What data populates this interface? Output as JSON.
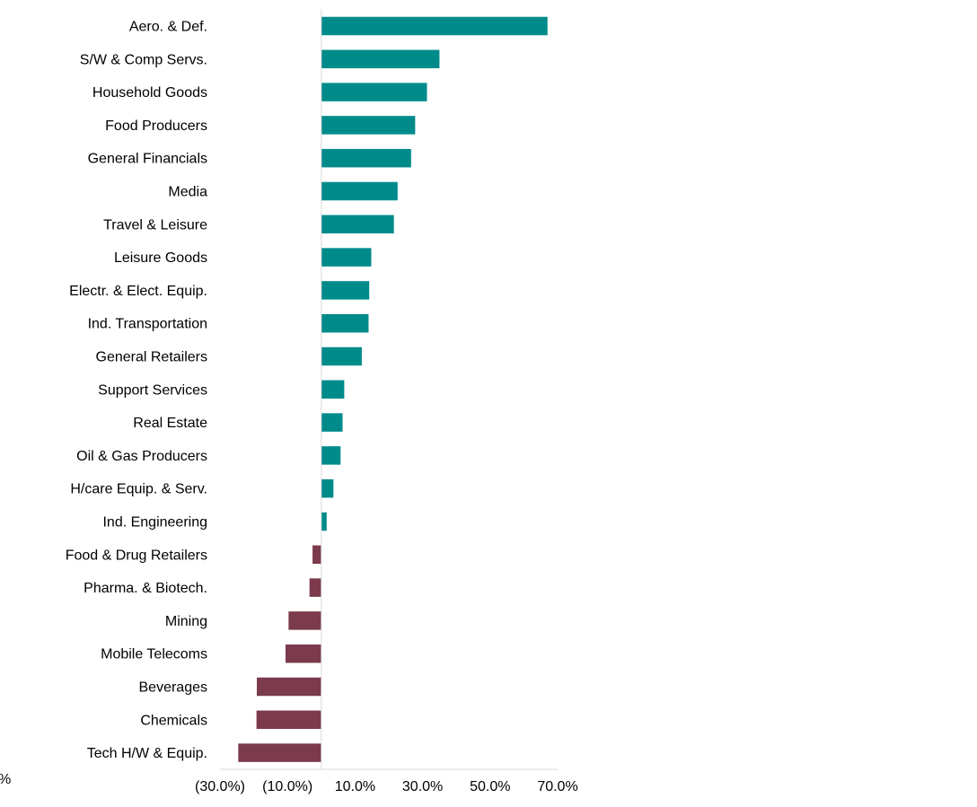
{
  "chart_data": {
    "type": "bar",
    "orientation": "horizontal",
    "title": "",
    "xlabel": "",
    "ylabel": "",
    "categories": [
      "Aero. & Def.",
      "S/W & Comp Servs.",
      "Household Goods",
      "Food Producers",
      "General Financials",
      "Media",
      "Travel & Leisure",
      "Leisure Goods",
      "Electr. & Elect. Equip.",
      "Ind. Transportation",
      "General Retailers",
      "Support Services",
      "Real Estate",
      "Oil & Gas Producers",
      "H/care Equip. & Serv.",
      "Ind. Engineering",
      "Food & Drug Retailers",
      "Pharma. & Biotech.",
      "Mining",
      "Mobile Telecoms",
      "Beverages",
      "Chemicals",
      "Tech H/W & Equip."
    ],
    "values": [
      67.0,
      35.0,
      31.3,
      27.8,
      26.6,
      22.6,
      21.5,
      14.8,
      14.2,
      14.0,
      12.0,
      6.8,
      6.3,
      5.7,
      3.6,
      1.6,
      -2.6,
      -3.5,
      -9.7,
      -10.6,
      -19.1,
      -19.2,
      -24.6
    ],
    "xlim": [
      -30,
      70
    ],
    "x_ticks": [
      "(30.0%)",
      "(10.0%)",
      "10.0%",
      "30.0%",
      "50.0%",
      "70.0%"
    ],
    "x_tick_values": [
      -30,
      -10,
      10,
      30,
      50,
      70
    ],
    "grid": false,
    "legend": "none",
    "colors": {
      "positive": "#008B8B",
      "negative": "#7B3B4C",
      "axis": "#D9D9D9"
    },
    "stray_text": "%"
  }
}
